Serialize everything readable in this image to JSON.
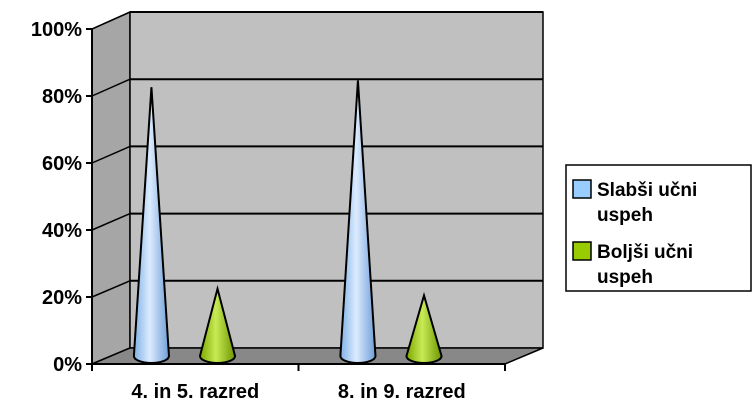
{
  "chart_data": {
    "type": "bar",
    "style": "3d-cone",
    "categories": [
      "4. in 5. razred",
      "8. in 9. razred"
    ],
    "series": [
      {
        "name": "Slabši učni uspeh",
        "values": [
          80,
          82
        ],
        "color": "#99CCFF"
      },
      {
        "name": "Boljši učni uspeh",
        "values": [
          20,
          18
        ],
        "color": "#99CC00"
      }
    ],
    "ylim": [
      0,
      100
    ],
    "yticks": [
      "0%",
      "20%",
      "40%",
      "60%",
      "80%",
      "100%"
    ],
    "grid": true,
    "legend_position": "right",
    "wall_color": "#C0C0C0"
  }
}
